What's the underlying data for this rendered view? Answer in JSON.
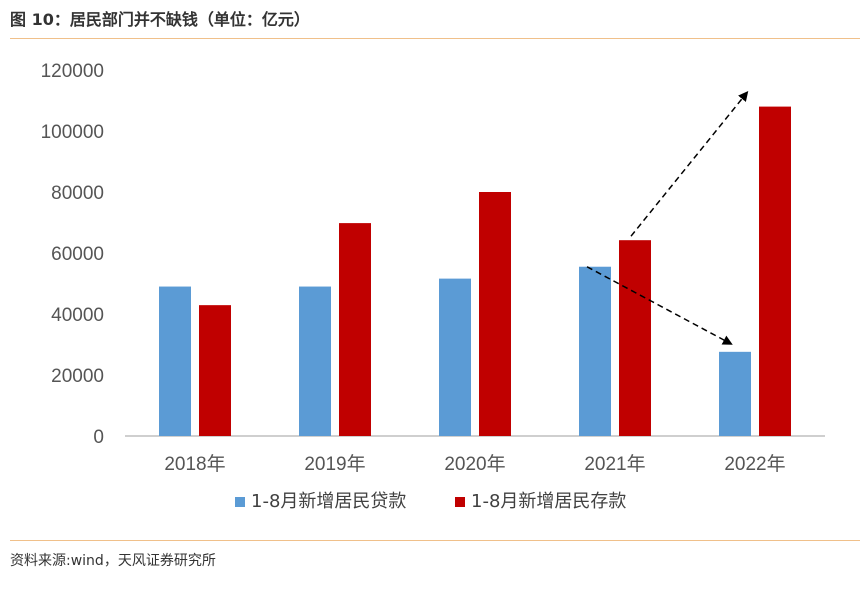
{
  "figure": {
    "title": "图 10：居民部门并不缺钱（单位：亿元）",
    "source": "资料来源:wind，天风证券研究所"
  },
  "colors": {
    "loans": "#5b9bd5",
    "deposits": "#c00000",
    "rule": "#f0c08a",
    "axis": "#bfbfbf"
  },
  "chart_data": {
    "type": "bar",
    "categories": [
      "2018年",
      "2019年",
      "2020年",
      "2021年",
      "2022年"
    ],
    "series": [
      {
        "name": "1-8月新增居民贷款",
        "values": [
          49000,
          49000,
          51600,
          55500,
          27600
        ]
      },
      {
        "name": "1-8月新增居民存款",
        "values": [
          42900,
          69800,
          80000,
          64200,
          108000
        ]
      }
    ],
    "ylim": [
      0,
      120000
    ],
    "yticks": [
      "0",
      "20000",
      "40000",
      "60000",
      "80000",
      "100000",
      "120000"
    ],
    "grid": false,
    "legend": "bottom",
    "annotations": [
      {
        "type": "dashed-arrow",
        "from": "2021年 存款",
        "to": "2022年 存款"
      },
      {
        "type": "dashed-arrow",
        "from": "2021年 贷款",
        "to": "2022年 贷款"
      }
    ]
  }
}
